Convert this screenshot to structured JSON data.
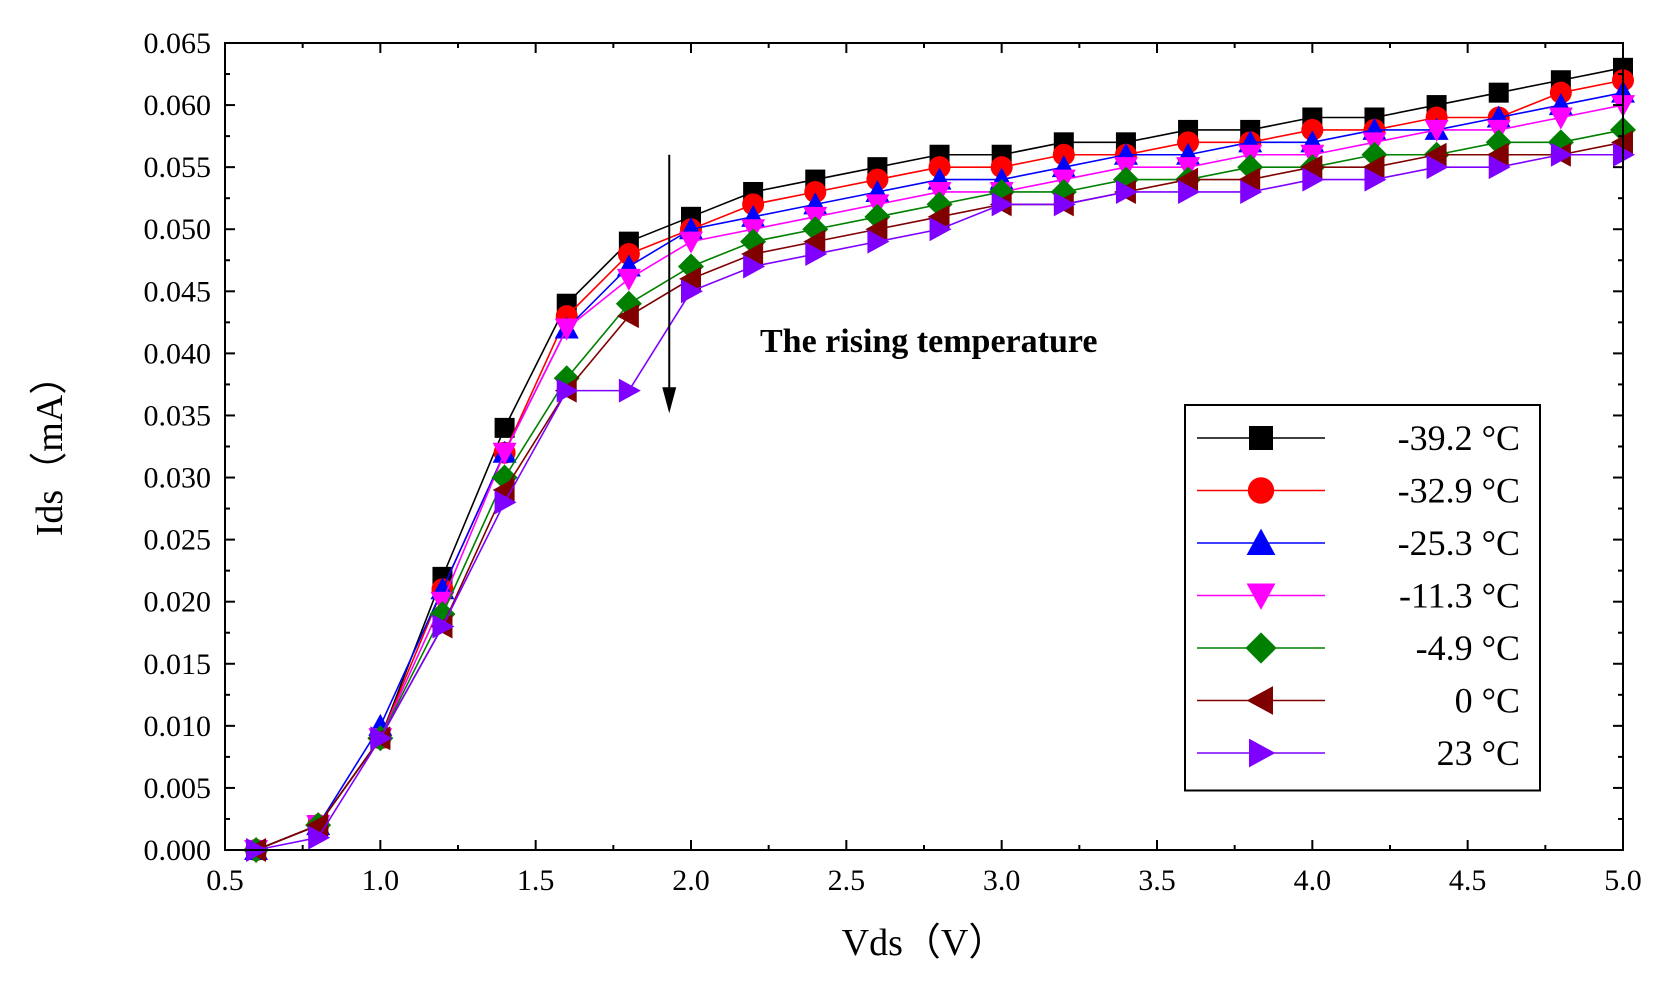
{
  "chart_data": {
    "type": "line",
    "title": "",
    "xlabel": "Vds（V）",
    "ylabel": "Ids（mA）",
    "xlim": [
      0.5,
      5.0
    ],
    "ylim": [
      0.0,
      0.065
    ],
    "x_ticks": [
      "0.5",
      "1.0",
      "1.5",
      "2.0",
      "2.5",
      "3.0",
      "3.5",
      "4.0",
      "4.5",
      "5.0"
    ],
    "y_ticks": [
      "0.000",
      "0.005",
      "0.010",
      "0.015",
      "0.020",
      "0.025",
      "0.030",
      "0.035",
      "0.040",
      "0.045",
      "0.050",
      "0.055",
      "0.060",
      "0.065"
    ],
    "x": [
      0.6,
      0.8,
      1.0,
      1.2,
      1.4,
      1.6,
      1.8,
      2.0,
      2.2,
      2.4,
      2.6,
      2.8,
      3.0,
      3.2,
      3.4,
      3.6,
      3.8,
      4.0,
      4.2,
      4.4,
      4.6,
      4.8,
      5.0
    ],
    "series": [
      {
        "name": "-39.2 °C",
        "color": "#000000",
        "marker": "square",
        "values": [
          0.0,
          0.002,
          0.009,
          0.022,
          0.034,
          0.044,
          0.049,
          0.051,
          0.053,
          0.054,
          0.055,
          0.056,
          0.056,
          0.057,
          0.057,
          0.058,
          0.058,
          0.059,
          0.059,
          0.06,
          0.061,
          0.062,
          0.063
        ]
      },
      {
        "name": "-32.9 °C",
        "color": "#ff0000",
        "marker": "circle",
        "values": [
          0.0,
          0.002,
          0.009,
          0.021,
          0.032,
          0.043,
          0.048,
          0.05,
          0.052,
          0.053,
          0.054,
          0.055,
          0.055,
          0.056,
          0.056,
          0.057,
          0.057,
          0.058,
          0.058,
          0.059,
          0.059,
          0.061,
          0.062
        ]
      },
      {
        "name": "-25.3 °C",
        "color": "#0000ff",
        "marker": "triangle-up",
        "values": [
          0.0,
          0.002,
          0.01,
          0.021,
          0.032,
          0.042,
          0.047,
          0.05,
          0.051,
          0.052,
          0.053,
          0.054,
          0.054,
          0.055,
          0.056,
          0.056,
          0.057,
          0.057,
          0.058,
          0.058,
          0.059,
          0.06,
          0.061
        ]
      },
      {
        "name": "-11.3 °C",
        "color": "#ff00ff",
        "marker": "triangle-down",
        "values": [
          0.0,
          0.002,
          0.009,
          0.02,
          0.032,
          0.042,
          0.046,
          0.049,
          0.05,
          0.051,
          0.052,
          0.053,
          0.053,
          0.054,
          0.055,
          0.055,
          0.056,
          0.056,
          0.057,
          0.058,
          0.058,
          0.059,
          0.06
        ]
      },
      {
        "name": "-4.9 °C",
        "color": "#008000",
        "marker": "diamond",
        "values": [
          0.0,
          0.002,
          0.009,
          0.019,
          0.03,
          0.038,
          0.044,
          0.047,
          0.049,
          0.05,
          0.051,
          0.052,
          0.053,
          0.053,
          0.054,
          0.054,
          0.055,
          0.055,
          0.056,
          0.056,
          0.057,
          0.057,
          0.058
        ]
      },
      {
        "name": "0 °C",
        "color": "#800000",
        "marker": "triangle-left",
        "values": [
          0.0,
          0.002,
          0.009,
          0.018,
          0.029,
          0.037,
          0.043,
          0.046,
          0.048,
          0.049,
          0.05,
          0.051,
          0.052,
          0.052,
          0.053,
          0.054,
          0.054,
          0.055,
          0.055,
          0.056,
          0.056,
          0.056,
          0.057
        ]
      },
      {
        "name": "23 °C",
        "color": "#8000ff",
        "marker": "triangle-right",
        "values": [
          0.0,
          0.001,
          0.009,
          0.018,
          0.028,
          0.037,
          0.037,
          0.045,
          0.047,
          0.048,
          0.049,
          0.05,
          0.052,
          0.052,
          0.053,
          0.053,
          0.053,
          0.054,
          0.054,
          0.055,
          0.055,
          0.056,
          0.056
        ]
      }
    ],
    "annotation": {
      "text": "The rising temperature",
      "arrow_x": 1.93,
      "arrow_y_start": 0.056,
      "arrow_y_end": 0.0355
    },
    "legend_position": "right"
  }
}
